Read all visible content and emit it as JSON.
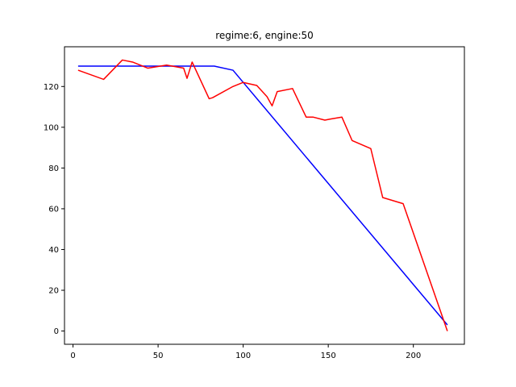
{
  "chart_data": {
    "type": "line",
    "title": "regime:6, engine:50",
    "xlabel": "",
    "ylabel": "",
    "xlim": [
      -5,
      230
    ],
    "ylim": [
      -6.5,
      139.5
    ],
    "xticks": [
      0,
      50,
      100,
      150,
      200
    ],
    "yticks": [
      0,
      20,
      40,
      60,
      80,
      100,
      120
    ],
    "grid": false,
    "legend": "none",
    "series": [
      {
        "color": "#0000ff",
        "points": [
          [
            3,
            130
          ],
          [
            83,
            130
          ],
          [
            94,
            128
          ],
          [
            220,
            3
          ]
        ]
      },
      {
        "color": "#ff0000",
        "points": [
          [
            3,
            128
          ],
          [
            18,
            123.5
          ],
          [
            29,
            133
          ],
          [
            35,
            132
          ],
          [
            44,
            129
          ],
          [
            55,
            130.5
          ],
          [
            65,
            129
          ],
          [
            67,
            124
          ],
          [
            70,
            132
          ],
          [
            80,
            114
          ],
          [
            82,
            114.5
          ],
          [
            94,
            120
          ],
          [
            100,
            122
          ],
          [
            108,
            120.5
          ],
          [
            114,
            115
          ],
          [
            117,
            110.5
          ],
          [
            120,
            117.5
          ],
          [
            129,
            119
          ],
          [
            137,
            105
          ],
          [
            141,
            105
          ],
          [
            148,
            103.5
          ],
          [
            151,
            104
          ],
          [
            158,
            105
          ],
          [
            164,
            93.5
          ],
          [
            175,
            89.5
          ],
          [
            182,
            65.5
          ],
          [
            194,
            62.5
          ],
          [
            220,
            0
          ]
        ]
      }
    ]
  }
}
